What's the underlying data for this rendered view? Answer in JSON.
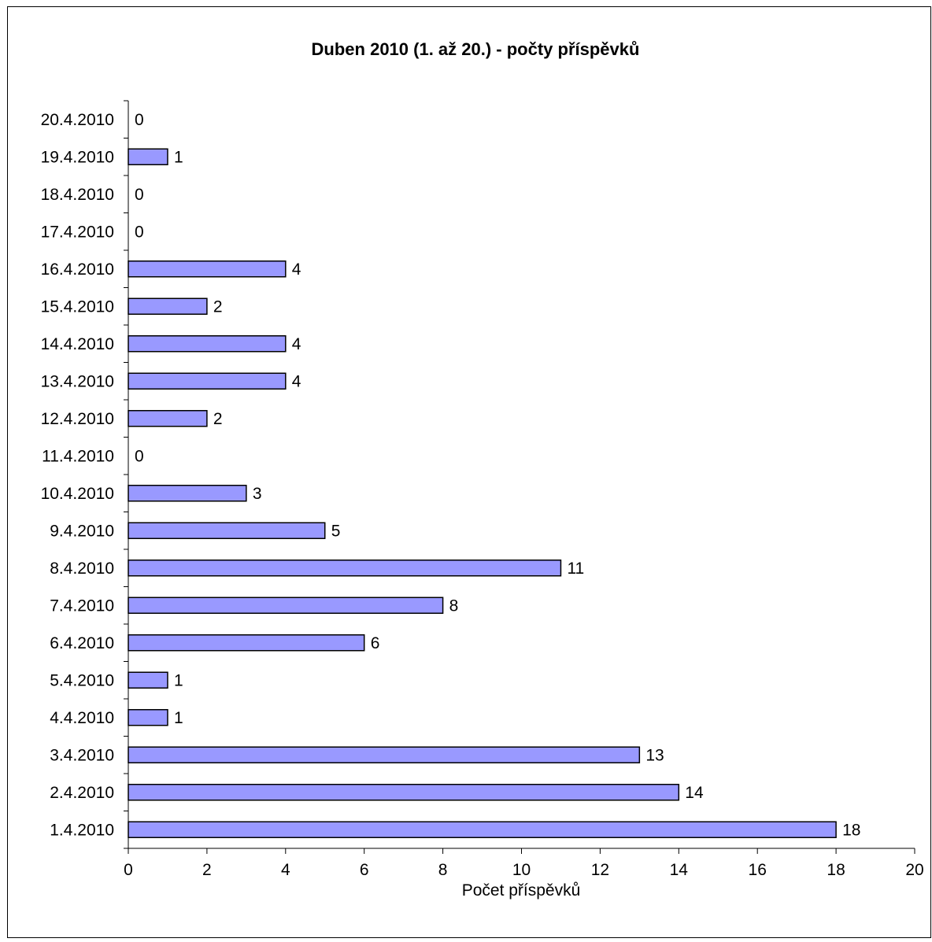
{
  "chart_data": {
    "type": "bar",
    "orientation": "horizontal",
    "title": "Duben 2010 (1. až 20.) - počty příspěvků",
    "xlabel": "Počet příspěvků",
    "ylabel": "",
    "xlim": [
      0,
      20
    ],
    "x_ticks": [
      "0",
      "2",
      "4",
      "6",
      "8",
      "10",
      "12",
      "14",
      "16",
      "18",
      "20"
    ],
    "categories": [
      "1.4.2010",
      "2.4.2010",
      "3.4.2010",
      "4.4.2010",
      "5.4.2010",
      "6.4.2010",
      "7.4.2010",
      "8.4.2010",
      "9.4.2010",
      "10.4.2010",
      "11.4.2010",
      "12.4.2010",
      "13.4.2010",
      "14.4.2010",
      "15.4.2010",
      "16.4.2010",
      "17.4.2010",
      "18.4.2010",
      "19.4.2010",
      "20.4.2010"
    ],
    "values": [
      18,
      14,
      13,
      1,
      1,
      6,
      8,
      11,
      5,
      3,
      0,
      2,
      4,
      4,
      2,
      4,
      0,
      0,
      1,
      0
    ],
    "data_labels": true,
    "bar_color": "#9999ff",
    "bar_border_color": "#000000",
    "grid": false,
    "legend": "none"
  }
}
